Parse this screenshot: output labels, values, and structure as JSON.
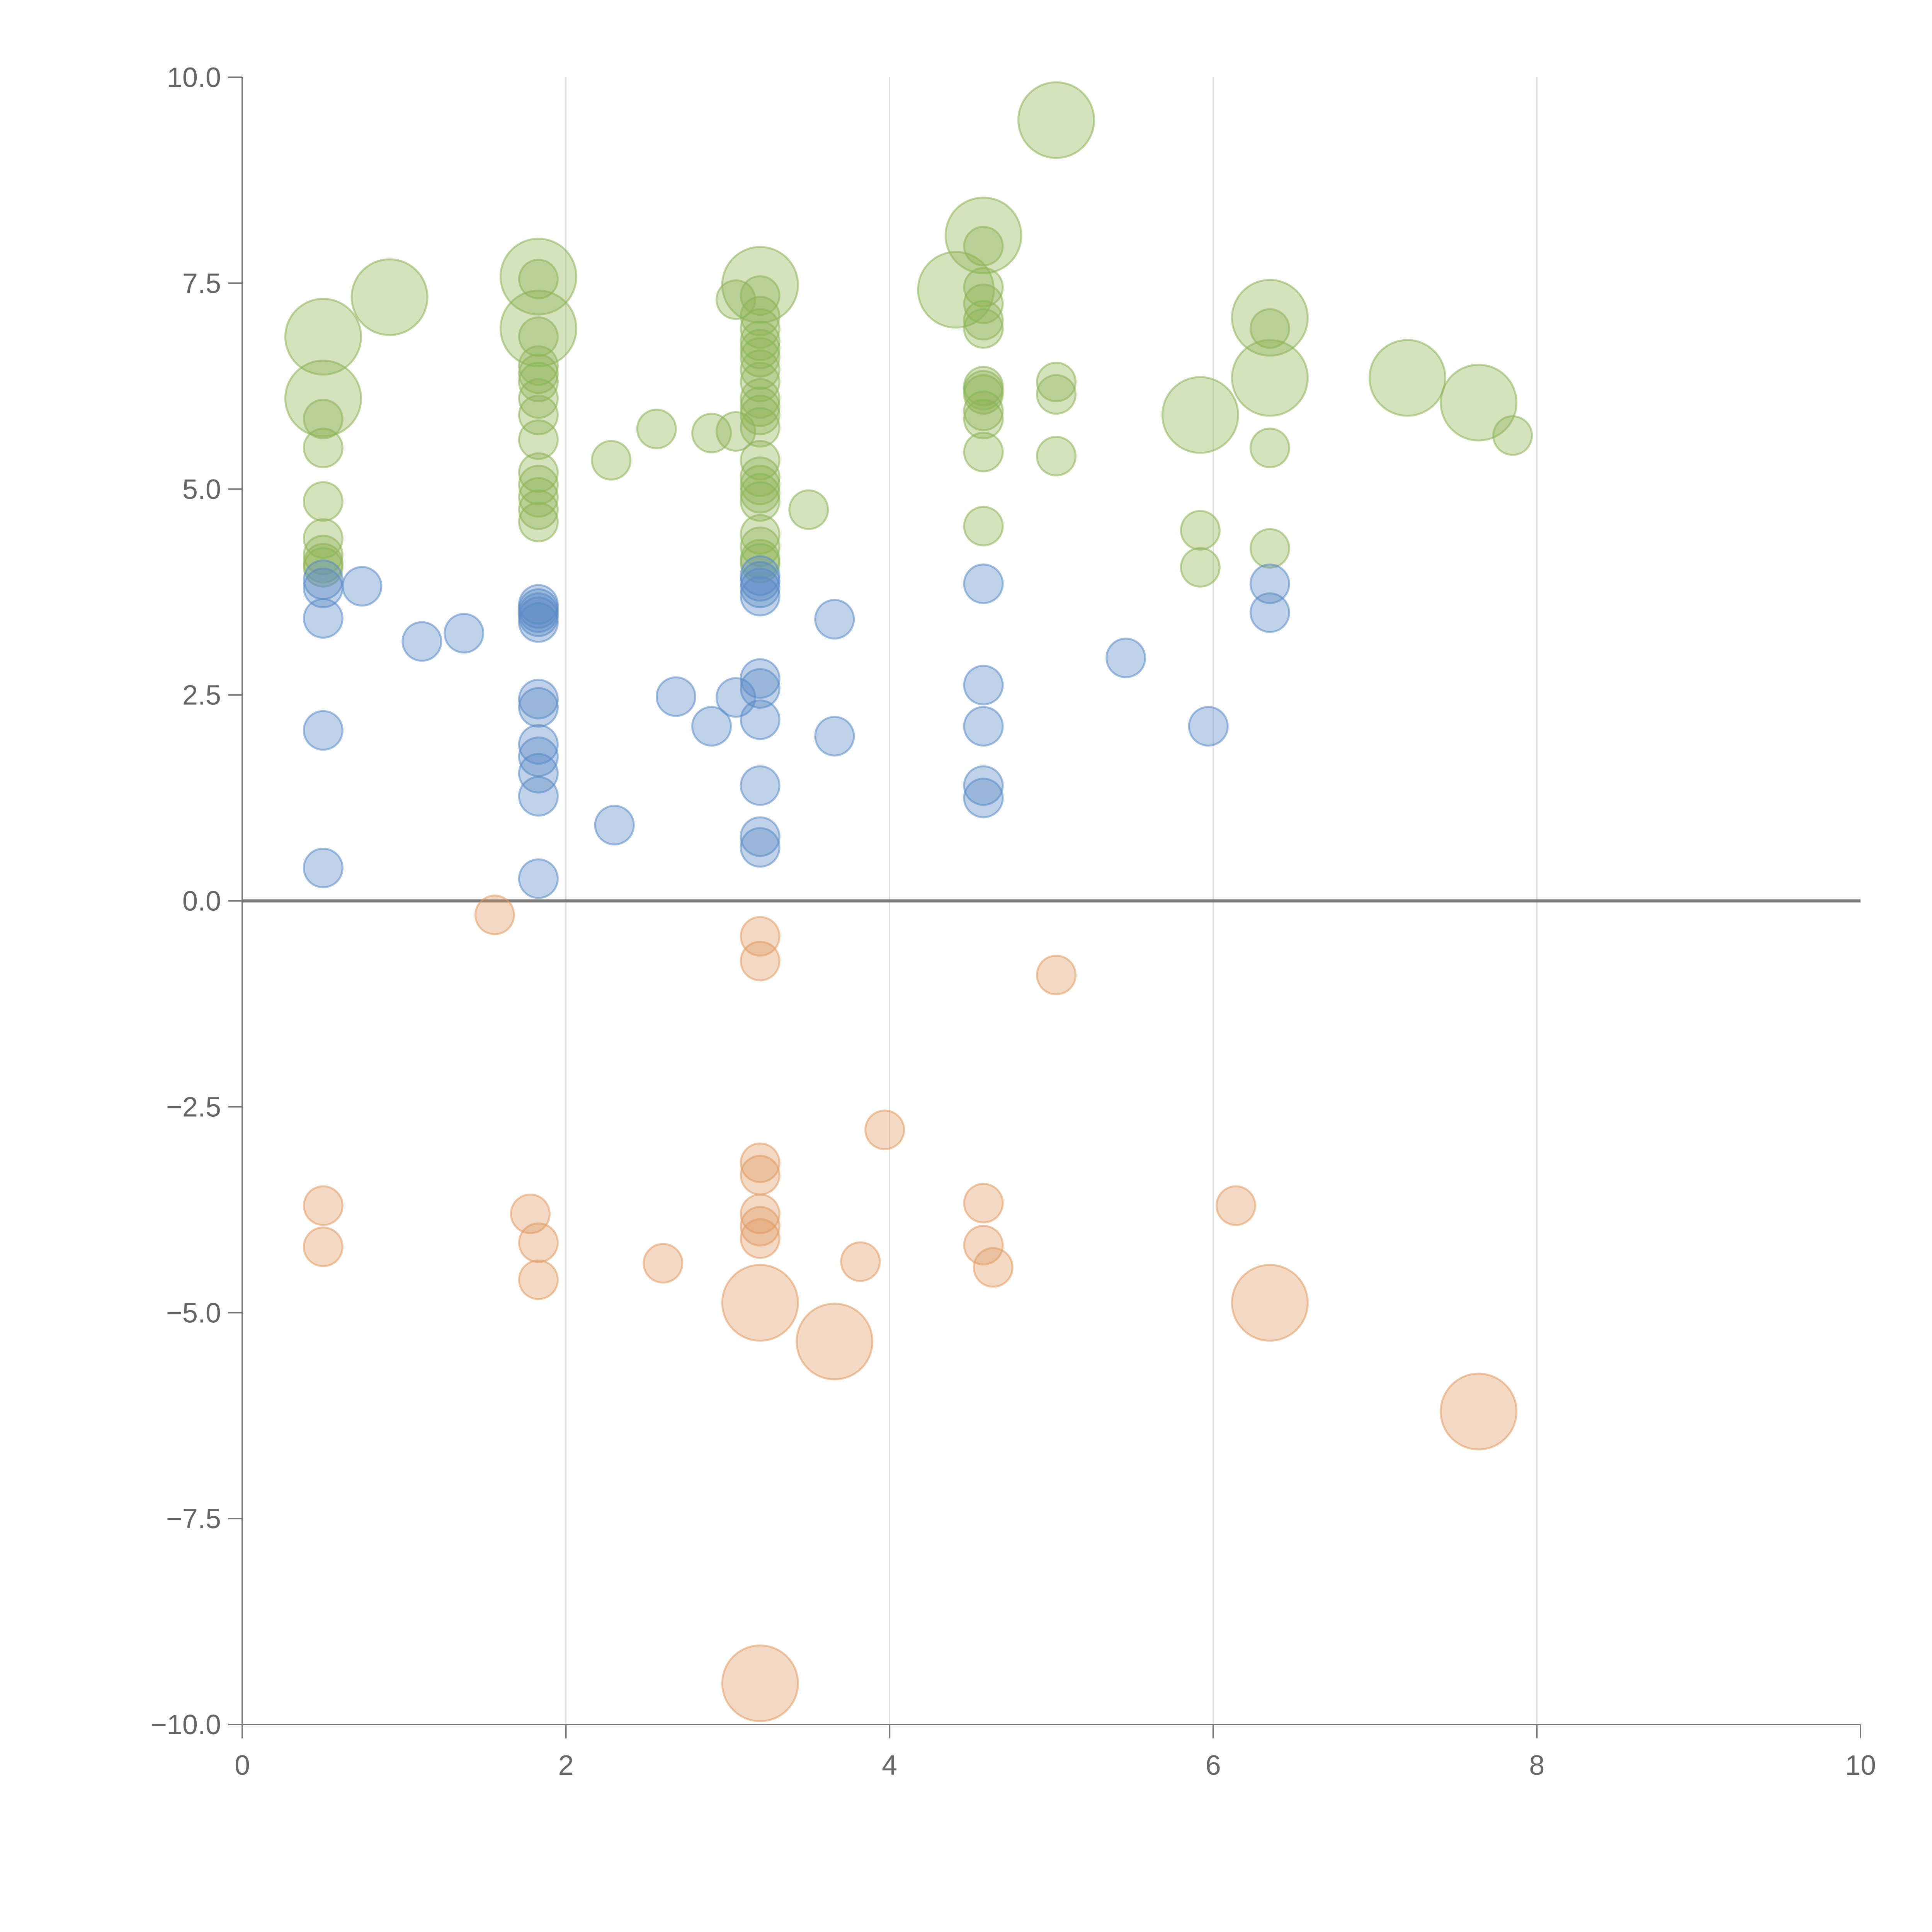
{
  "chart_data": {
    "type": "scatter",
    "title": "",
    "xlabel": "",
    "ylabel": "",
    "xlim": [
      0,
      10
    ],
    "ylim": [
      -10,
      10
    ],
    "x_ticks": [
      0,
      2,
      4,
      6,
      8,
      10
    ],
    "y_ticks": [
      -10,
      -7.5,
      -5,
      -2.5,
      0,
      2.5,
      5,
      7.5,
      10
    ],
    "x_tick_labels": [
      "0",
      "2",
      "4",
      "6",
      "8",
      "10"
    ],
    "y_tick_labels": [
      "−10.0",
      "−7.5",
      "−5.0",
      "−2.5",
      "0.0",
      "2.5",
      "5.0",
      "7.5",
      "10.0"
    ],
    "grid": "vertical",
    "zero_line": true,
    "series": [
      {
        "name": "green",
        "color": "#8db255",
        "points": [
          [
            0.5,
            6.85,
            3
          ],
          [
            0.5,
            6.1,
            3
          ],
          [
            0.91,
            7.33,
            3
          ],
          [
            0.5,
            5.85,
            1
          ],
          [
            0.5,
            5.5,
            1
          ],
          [
            0.5,
            4.85,
            1
          ],
          [
            0.5,
            4.4,
            1
          ],
          [
            0.5,
            4.2,
            1
          ],
          [
            0.5,
            4.1,
            1
          ],
          [
            0.5,
            4.05,
            1
          ],
          [
            1.83,
            7.58,
            3
          ],
          [
            1.83,
            6.95,
            3
          ],
          [
            1.83,
            7.55,
            1
          ],
          [
            1.83,
            6.85,
            1
          ],
          [
            1.83,
            6.5,
            1
          ],
          [
            1.83,
            6.4,
            1
          ],
          [
            1.83,
            6.3,
            1
          ],
          [
            1.83,
            6.1,
            1
          ],
          [
            1.83,
            5.9,
            1
          ],
          [
            1.83,
            5.6,
            1
          ],
          [
            1.83,
            5.2,
            1
          ],
          [
            1.83,
            5.05,
            1
          ],
          [
            1.83,
            4.9,
            1
          ],
          [
            1.83,
            4.75,
            1
          ],
          [
            1.83,
            4.6,
            1
          ],
          [
            2.28,
            5.35,
            1
          ],
          [
            2.56,
            5.73,
            1
          ],
          [
            2.9,
            5.68,
            1
          ],
          [
            3.05,
            5.7,
            1
          ],
          [
            3.05,
            7.3,
            1
          ],
          [
            3.2,
            7.48,
            3
          ],
          [
            3.2,
            7.35,
            1
          ],
          [
            3.2,
            7.1,
            1
          ],
          [
            3.2,
            6.95,
            1
          ],
          [
            3.2,
            6.8,
            1
          ],
          [
            3.2,
            6.7,
            1
          ],
          [
            3.2,
            6.6,
            1
          ],
          [
            3.2,
            6.45,
            1
          ],
          [
            3.2,
            6.3,
            1
          ],
          [
            3.2,
            6.1,
            1
          ],
          [
            3.2,
            6.0,
            1
          ],
          [
            3.2,
            5.9,
            1
          ],
          [
            3.2,
            5.75,
            1
          ],
          [
            3.2,
            5.35,
            1
          ],
          [
            3.2,
            5.15,
            1
          ],
          [
            3.2,
            5.05,
            1
          ],
          [
            3.2,
            4.95,
            1
          ],
          [
            3.2,
            4.85,
            1
          ],
          [
            3.2,
            4.45,
            1
          ],
          [
            3.2,
            4.3,
            1
          ],
          [
            3.2,
            4.15,
            1
          ],
          [
            3.2,
            4.1,
            1
          ],
          [
            3.5,
            4.75,
            1
          ],
          [
            4.41,
            7.42,
            3
          ],
          [
            4.58,
            8.08,
            3
          ],
          [
            4.58,
            7.95,
            1
          ],
          [
            4.58,
            7.45,
            1
          ],
          [
            4.58,
            7.25,
            1
          ],
          [
            4.58,
            7.05,
            1
          ],
          [
            4.58,
            6.95,
            1
          ],
          [
            4.58,
            6.25,
            1
          ],
          [
            4.58,
            6.2,
            1
          ],
          [
            4.58,
            6.15,
            1
          ],
          [
            4.58,
            5.95,
            1
          ],
          [
            4.58,
            5.85,
            1
          ],
          [
            4.58,
            5.45,
            1
          ],
          [
            4.58,
            4.55,
            1
          ],
          [
            5.03,
            9.48,
            3
          ],
          [
            5.03,
            6.3,
            1
          ],
          [
            5.03,
            6.15,
            1
          ],
          [
            5.03,
            5.4,
            1
          ],
          [
            5.92,
            5.9,
            3
          ],
          [
            5.92,
            4.5,
            1
          ],
          [
            5.92,
            4.05,
            1
          ],
          [
            6.35,
            7.08,
            3
          ],
          [
            6.35,
            6.35,
            3
          ],
          [
            6.35,
            6.95,
            1
          ],
          [
            6.35,
            5.5,
            1
          ],
          [
            6.35,
            4.28,
            1
          ],
          [
            7.2,
            6.35,
            3
          ],
          [
            7.64,
            6.05,
            3
          ],
          [
            7.85,
            5.65,
            1
          ]
        ]
      },
      {
        "name": "blue",
        "color": "#5a8ac6",
        "points": [
          [
            0.5,
            3.9,
            1
          ],
          [
            0.5,
            3.8,
            1
          ],
          [
            0.5,
            3.43,
            1
          ],
          [
            0.5,
            2.07,
            1
          ],
          [
            0.5,
            0.4,
            1
          ],
          [
            0.74,
            3.82,
            1
          ],
          [
            1.11,
            3.15,
            1
          ],
          [
            1.37,
            3.25,
            1
          ],
          [
            1.83,
            3.6,
            1
          ],
          [
            1.83,
            3.55,
            1
          ],
          [
            1.83,
            3.5,
            1
          ],
          [
            1.83,
            3.45,
            1
          ],
          [
            1.83,
            3.38,
            1
          ],
          [
            1.83,
            2.45,
            1
          ],
          [
            1.83,
            2.35,
            1
          ],
          [
            1.83,
            1.9,
            1
          ],
          [
            1.83,
            1.75,
            1
          ],
          [
            1.83,
            1.55,
            1
          ],
          [
            1.83,
            1.27,
            1
          ],
          [
            1.83,
            0.27,
            1
          ],
          [
            2.3,
            0.92,
            1
          ],
          [
            2.68,
            2.48,
            1
          ],
          [
            2.9,
            2.12,
            1
          ],
          [
            3.05,
            2.47,
            1
          ],
          [
            3.2,
            3.95,
            1
          ],
          [
            3.2,
            3.88,
            1
          ],
          [
            3.2,
            3.8,
            1
          ],
          [
            3.2,
            3.7,
            1
          ],
          [
            3.2,
            2.7,
            1
          ],
          [
            3.2,
            2.58,
            1
          ],
          [
            3.2,
            2.2,
            1
          ],
          [
            3.2,
            1.4,
            1
          ],
          [
            3.2,
            0.78,
            1
          ],
          [
            3.2,
            0.65,
            1
          ],
          [
            3.66,
            3.42,
            1
          ],
          [
            3.66,
            2.0,
            1
          ],
          [
            4.58,
            3.85,
            1
          ],
          [
            4.58,
            2.62,
            1
          ],
          [
            4.58,
            2.12,
            1
          ],
          [
            4.58,
            1.4,
            1
          ],
          [
            4.58,
            1.25,
            1
          ],
          [
            5.46,
            2.95,
            1
          ],
          [
            5.97,
            2.12,
            1
          ],
          [
            6.35,
            3.85,
            1
          ],
          [
            6.35,
            3.5,
            1
          ]
        ]
      },
      {
        "name": "orange",
        "color": "#e09b63",
        "points": [
          [
            0.5,
            -3.7,
            1
          ],
          [
            0.5,
            -4.2,
            1
          ],
          [
            1.56,
            -0.17,
            1
          ],
          [
            1.78,
            -3.8,
            1
          ],
          [
            1.83,
            -4.15,
            1
          ],
          [
            1.83,
            -4.6,
            1
          ],
          [
            2.6,
            -4.4,
            1
          ],
          [
            3.2,
            -0.43,
            1
          ],
          [
            3.2,
            -0.73,
            1
          ],
          [
            3.2,
            -3.18,
            1
          ],
          [
            3.2,
            -3.33,
            1
          ],
          [
            3.2,
            -3.8,
            1
          ],
          [
            3.2,
            -3.95,
            1
          ],
          [
            3.2,
            -4.1,
            1
          ],
          [
            3.2,
            -4.88,
            3
          ],
          [
            3.2,
            -9.5,
            3
          ],
          [
            3.66,
            -5.35,
            3
          ],
          [
            3.82,
            -4.38,
            1
          ],
          [
            3.97,
            -2.78,
            1
          ],
          [
            4.58,
            -3.67,
            1
          ],
          [
            4.58,
            -4.18,
            1
          ],
          [
            4.64,
            -4.45,
            1
          ],
          [
            5.03,
            -0.9,
            1
          ],
          [
            6.14,
            -3.7,
            1
          ],
          [
            6.35,
            -4.88,
            3
          ],
          [
            7.64,
            -6.2,
            3
          ]
        ]
      }
    ]
  }
}
